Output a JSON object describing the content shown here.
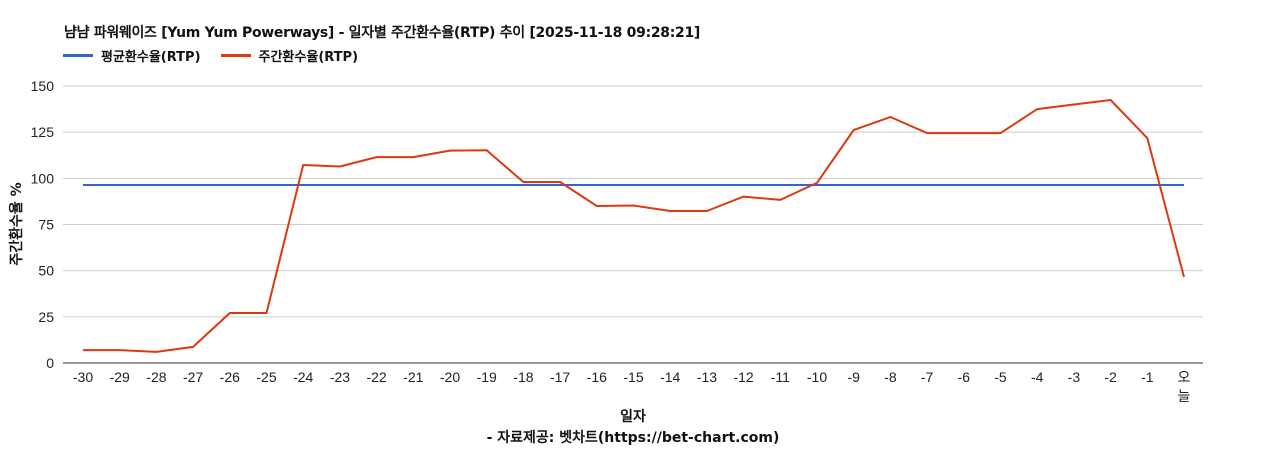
{
  "title": "냠냠 파워웨이즈 [Yum Yum Powerways] - 일자별 주간환수율(RTP) 추이 [2025-11-18 09:28:21]",
  "legend": [
    {
      "label": "평균환수율(RTP)",
      "color": "#3366cc"
    },
    {
      "label": "주간환수율(RTP)",
      "color": "#dc3912"
    }
  ],
  "xlabel": "일자",
  "ylabel": "주간환수율 %",
  "source": "- 자료제공: 벳차트(https://bet-chart.com)",
  "chart_data": {
    "type": "line",
    "title": "냠냠 파워웨이즈 [Yum Yum Powerways] - 일자별 주간환수율(RTP) 추이 [2025-11-18 09:28:21]",
    "xlabel": "일자",
    "ylabel": "주간환수율 %",
    "ylim": [
      0,
      150
    ],
    "yticks": [
      0,
      25,
      50,
      75,
      100,
      125,
      150
    ],
    "grid": true,
    "legend_position": "top",
    "categories": [
      "-30",
      "-29",
      "-28",
      "-27",
      "-26",
      "-25",
      "-24",
      "-23",
      "-22",
      "-21",
      "-20",
      "-19",
      "-18",
      "-17",
      "-16",
      "-15",
      "-14",
      "-13",
      "-12",
      "-11",
      "-10",
      "-9",
      "-8",
      "-7",
      "-6",
      "-5",
      "-4",
      "-3",
      "-2",
      "-1",
      "오늘"
    ],
    "series": [
      {
        "name": "평균환수율(RTP)",
        "color": "#3366cc",
        "values": [
          96.4,
          96.4,
          96.4,
          96.4,
          96.4,
          96.4,
          96.4,
          96.4,
          96.4,
          96.4,
          96.4,
          96.4,
          96.4,
          96.4,
          96.4,
          96.4,
          96.4,
          96.4,
          96.4,
          96.4,
          96.4,
          96.4,
          96.4,
          96.4,
          96.4,
          96.4,
          96.4,
          96.4,
          96.4,
          96.4,
          96.4
        ]
      },
      {
        "name": "주간환수율(RTP)",
        "color": "#dc3912",
        "values": [
          7.0,
          7.0,
          6.0,
          8.7,
          27.1,
          27.1,
          107.2,
          106.4,
          111.5,
          111.5,
          115.0,
          115.2,
          98.0,
          98.0,
          85.0,
          85.3,
          82.3,
          82.3,
          90.1,
          88.3,
          97.5,
          126.2,
          133.2,
          124.5,
          124.5,
          124.5,
          137.5,
          140.0,
          142.4,
          121.8,
          46.6
        ]
      }
    ]
  }
}
